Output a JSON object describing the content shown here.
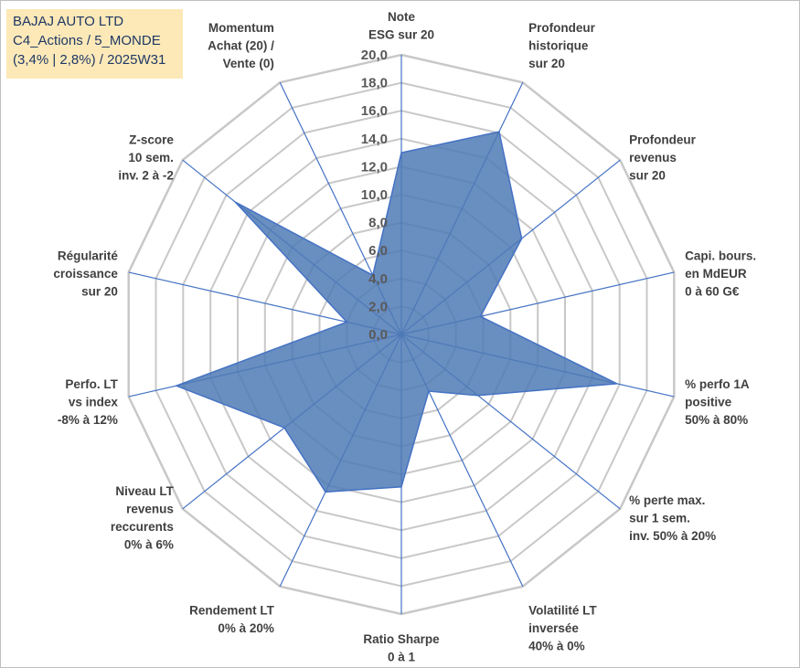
{
  "title_box": {
    "line1": "BAJAJ AUTO LTD",
    "line2": "C4_Actions / 5_MONDE",
    "line3": "(3,4% | 2,8%) / 2025W31"
  },
  "colors": {
    "background": "#ffffff",
    "title_box_bg": "#fde9b8",
    "title_text": "#1f3864",
    "grid": "#c8c8c8",
    "spoke": "#4472c4",
    "series_fill": "#4f7ab5",
    "series_stroke": "#4472c4"
  },
  "chart_data": {
    "type": "radar",
    "grid": true,
    "rlim": [
      0,
      20
    ],
    "ticks": [
      "0,0",
      "2,0",
      "4,0",
      "6,0",
      "8,0",
      "10,0",
      "12,0",
      "14,0",
      "16,0",
      "18,0",
      "20,0"
    ],
    "axes": [
      {
        "label": [
          "Note",
          "ESG sur 20"
        ]
      },
      {
        "label": [
          "Profondeur",
          "historique",
          "sur 20"
        ]
      },
      {
        "label": [
          "Profondeur",
          "revenus",
          "sur 20"
        ]
      },
      {
        "label": [
          "Capi. bours.",
          "en MdEUR",
          "0 à 60 G€"
        ]
      },
      {
        "label": [
          "% perfo 1A",
          "positive",
          "50% à 80%"
        ]
      },
      {
        "label": [
          "% perte max.",
          "sur 1 sem.",
          "inv. 50% à 20%"
        ]
      },
      {
        "label": [
          "Volatilité LT",
          "inversée",
          "40% à 0%"
        ]
      },
      {
        "label": [
          "Ratio Sharpe",
          "0 à 1"
        ]
      },
      {
        "label": [
          "Rendement LT",
          "0% à 20%"
        ]
      },
      {
        "label": [
          "Niveau LT",
          "revenus",
          "reccurents",
          "0% à 6%"
        ]
      },
      {
        "label": [
          "Perfo. LT",
          "vs index",
          "-8% à 12%"
        ]
      },
      {
        "label": [
          "Régularité",
          "croissance",
          "sur 20"
        ]
      },
      {
        "label": [
          "Z-score",
          "10 sem.",
          "inv. 2 à -2"
        ]
      },
      {
        "label": [
          "Momentum",
          "Achat (20) /",
          "Vente (0)"
        ]
      }
    ],
    "series": [
      {
        "values": [
          13.0,
          16.1,
          11.0,
          5.8,
          15.8,
          7.0,
          4.5,
          10.9,
          12.5,
          10.7,
          16.5,
          4.0,
          15.2,
          4.7
        ]
      }
    ]
  }
}
